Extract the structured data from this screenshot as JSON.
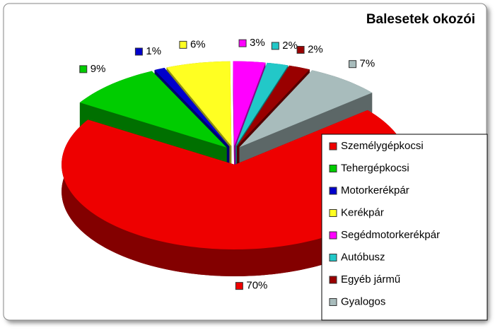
{
  "chart_data": {
    "type": "pie3d",
    "title": "Balesetek okozói",
    "categories": [
      "Személygépkocsi",
      "Tehergépkocsi",
      "Motorkerékpár",
      "Kerékpár",
      "Segédmotorkerékpár",
      "Autóbusz",
      "Egyéb jármű",
      "Gyalogos"
    ],
    "values": [
      70,
      9,
      1,
      6,
      3,
      2,
      2,
      7
    ],
    "value_labels": [
      "70%",
      "9%",
      "1%",
      "6%",
      "3%",
      "2%",
      "2%",
      "7%"
    ],
    "colors": [
      "#ee0000",
      "#00cc00",
      "#0000cc",
      "#ffff22",
      "#ff00ff",
      "#22c8c8",
      "#990000",
      "#a8bcbc"
    ],
    "legend": "right"
  }
}
